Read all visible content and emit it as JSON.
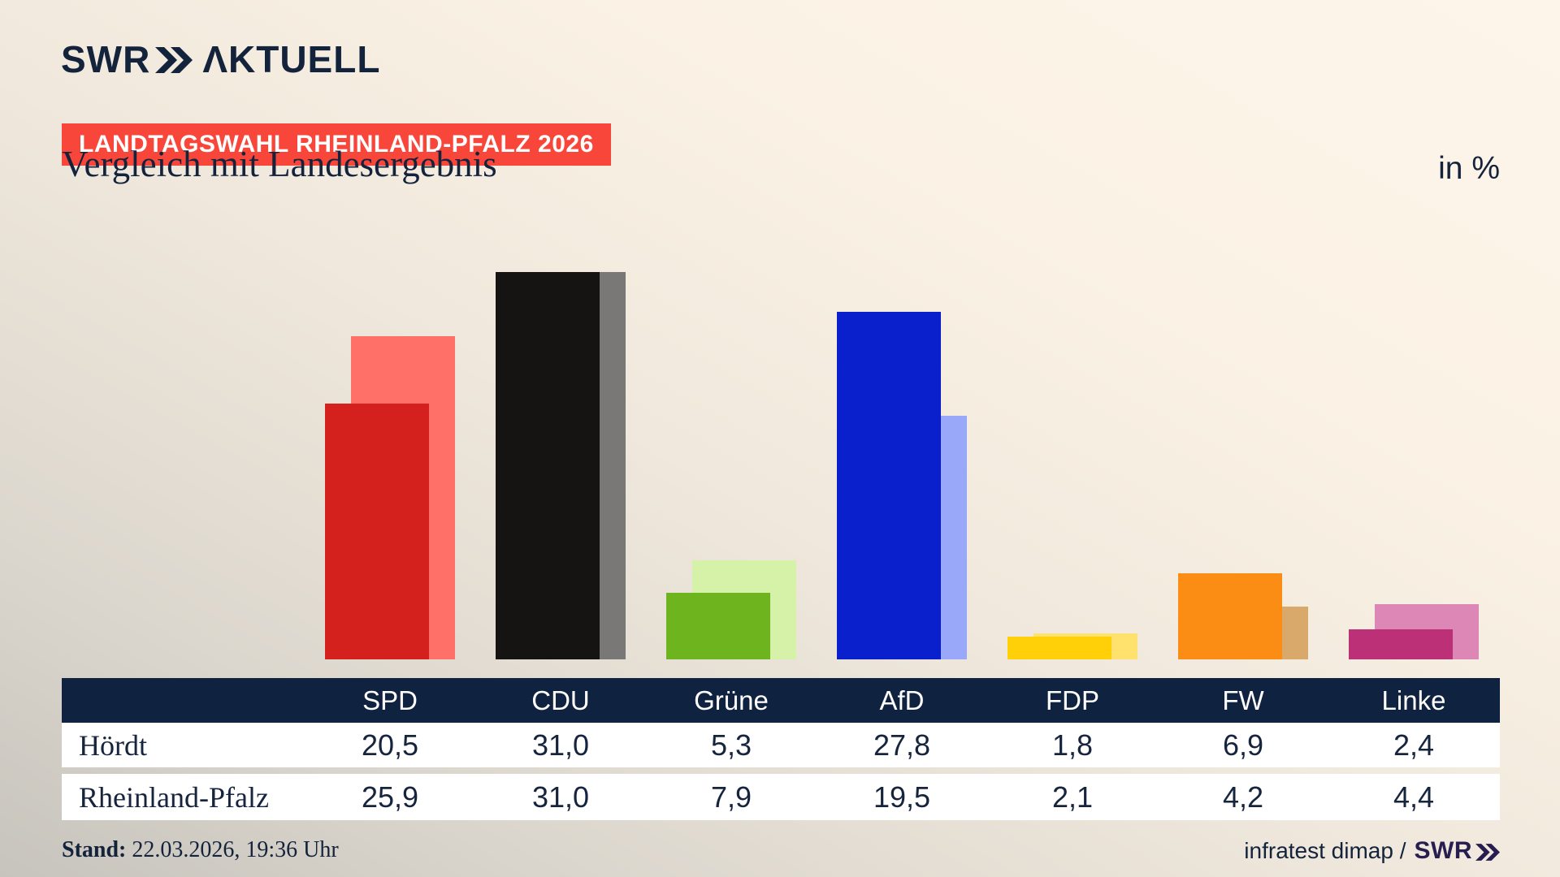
{
  "brand": {
    "swr": "SWR",
    "aktuell": "ΛKTUELL"
  },
  "badge": {
    "text": "LANDTAGSWAHL RHEINLAND-PFALZ 2026",
    "bg": "#f8473a"
  },
  "title": "Vergleich mit Landesergebnis",
  "unit_label": "in %",
  "colors": {
    "accent_navy": "#14233c",
    "table_header_bg": "#0f2340",
    "table_text": "#16243e",
    "footer_logo_purple": "#271e4f"
  },
  "chart_data": {
    "type": "bar",
    "title": "Vergleich mit Landesergebnis",
    "unit": "%",
    "categories": [
      "SPD",
      "CDU",
      "Grüne",
      "AfD",
      "FDP",
      "FW",
      "Linke"
    ],
    "series": [
      {
        "name": "Hördt",
        "role": "front",
        "values": [
          20.5,
          31.0,
          5.3,
          27.8,
          1.8,
          6.9,
          2.4
        ]
      },
      {
        "name": "Rheinland-Pfalz",
        "role": "back",
        "values": [
          25.9,
          31.0,
          7.9,
          19.5,
          2.1,
          4.2,
          4.4
        ]
      }
    ],
    "party_colors": [
      {
        "front": "#d5211d",
        "back": "#ff7168"
      },
      {
        "front": "#161412",
        "back": "#7a7876"
      },
      {
        "front": "#6db41f",
        "back": "#d5f2a8"
      },
      {
        "front": "#0b20cd",
        "back": "#9aa8fa"
      },
      {
        "front": "#ffd008",
        "back": "#ffe26e"
      },
      {
        "front": "#fb8d15",
        "back": "#d9a96b"
      },
      {
        "front": "#bb3077",
        "back": "#dd87b7"
      }
    ],
    "ylim": [
      0,
      31
    ],
    "grid": false,
    "legend": "table-below",
    "xlabel": "",
    "ylabel": "in %"
  },
  "table": {
    "header": [
      "",
      "SPD",
      "CDU",
      "Grüne",
      "AfD",
      "FDP",
      "FW",
      "Linke"
    ],
    "rows": [
      {
        "label": "Hördt",
        "values": [
          "20,5",
          "31,0",
          "5,3",
          "27,8",
          "1,8",
          "6,9",
          "2,4"
        ]
      },
      {
        "label": "Rheinland-Pfalz",
        "values": [
          "25,9",
          "31,0",
          "7,9",
          "19,5",
          "2,1",
          "4,2",
          "4,4"
        ]
      }
    ]
  },
  "footer": {
    "stand_label": "Stand:",
    "stand_value": " 22.03.2026, 19:36 Uhr",
    "source": "infratest dimap /",
    "source_logo": "SWR"
  }
}
